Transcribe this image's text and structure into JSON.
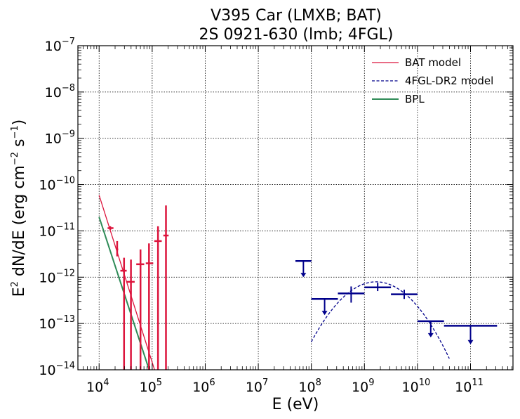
{
  "chart_data": {
    "type": "scatter",
    "title": [
      "V395 Car (LMXB; BAT)",
      "2S 0921-630 (lmb; 4FGL)"
    ],
    "xlabel": "E (eV)",
    "ylabel": "E2 dN/dE (erg cm-2 s-1)",
    "xscale": "log",
    "yscale": "log",
    "xlim": [
      3981,
      6309573445
    ],
    "ylim": [
      1e-14,
      1e-07
    ],
    "xlim_exp": [
      3.6,
      11.8
    ],
    "ylim_exp": [
      -14,
      -7
    ],
    "grid": true,
    "legend_position": "top-right",
    "x_ticks": [
      {
        "base": "10",
        "exp": "4",
        "value": 4
      },
      {
        "base": "10",
        "exp": "5",
        "value": 5
      },
      {
        "base": "10",
        "exp": "6",
        "value": 6
      },
      {
        "base": "10",
        "exp": "7",
        "value": 7
      },
      {
        "base": "10",
        "exp": "8",
        "value": 8
      },
      {
        "base": "10",
        "exp": "9",
        "value": 9
      },
      {
        "base": "10",
        "exp": "10",
        "value": 10
      },
      {
        "base": "10",
        "exp": "11",
        "value": 11
      }
    ],
    "y_ticks": [
      {
        "base": "10",
        "exp": "−7",
        "value": -7
      },
      {
        "base": "10",
        "exp": "−8",
        "value": -8
      },
      {
        "base": "10",
        "exp": "−9",
        "value": -9
      },
      {
        "base": "10",
        "exp": "−10",
        "value": -10
      },
      {
        "base": "10",
        "exp": "−11",
        "value": -11
      },
      {
        "base": "10",
        "exp": "−12",
        "value": -12
      },
      {
        "base": "10",
        "exp": "−13",
        "value": -13
      },
      {
        "base": "10",
        "exp": "−14",
        "value": -14
      }
    ],
    "legend": [
      {
        "label": "BAT model",
        "color": "#dc143c",
        "style": "solid"
      },
      {
        "label": "4FGL-DR2 model",
        "color": "#00008b",
        "style": "dashed"
      },
      {
        "label": "BPL",
        "color": "#2e8b57",
        "style": "solid"
      }
    ],
    "bat_model": {
      "color": "#dc143c",
      "points": [
        [
          4.0,
          -10.23
        ],
        [
          5.1,
          -14.2
        ]
      ]
    },
    "bpl": {
      "color": "#2e8b57",
      "points": [
        [
          4.0,
          -10.7
        ],
        [
          5.0,
          -14.2
        ]
      ]
    },
    "fgl_model": {
      "color": "#00008b",
      "peak_logx": 9.22,
      "peak_logy": -12.1,
      "curvature": 0.87
    },
    "bat_points": {
      "color": "#dc143c",
      "points": [
        {
          "logx": 4.21,
          "x_lo": 4.16,
          "x_hi": 4.27,
          "logy": -10.94,
          "y_lo": -10.98,
          "y_hi": -10.9
        },
        {
          "logx": 4.34,
          "x_lo": 4.32,
          "x_hi": 4.36,
          "logy": -11.4,
          "y_lo": -11.55,
          "y_hi": -11.22
        },
        {
          "logx": 4.47,
          "x_lo": 4.4,
          "x_hi": 4.52,
          "logy": -11.86,
          "y_lo": -14.2,
          "y_hi": -11.58
        },
        {
          "logx": 4.6,
          "x_lo": 4.52,
          "x_hi": 4.67,
          "logy": -12.1,
          "y_lo": -14.2,
          "y_hi": -11.62
        },
        {
          "logx": 4.78,
          "x_lo": 4.7,
          "x_hi": 4.85,
          "logy": -11.72,
          "y_lo": -14.2,
          "y_hi": -11.4
        },
        {
          "logx": 4.94,
          "x_lo": 4.88,
          "x_hi": 5.02,
          "logy": -11.7,
          "y_lo": -14.2,
          "y_hi": -11.27
        },
        {
          "logx": 5.11,
          "x_lo": 5.04,
          "x_hi": 5.18,
          "logy": -11.22,
          "y_lo": -14.2,
          "y_hi": -10.9
        },
        {
          "logx": 5.26,
          "x_lo": 5.21,
          "x_hi": 5.31,
          "logy": -11.1,
          "y_lo": -14.2,
          "y_hi": -10.45
        }
      ]
    },
    "fgl_upper_limits": {
      "color": "#00008b",
      "points": [
        {
          "logx": 7.85,
          "x_lo": 7.7,
          "x_hi": 8.0,
          "logy": -11.65,
          "arrow_to": -12.0
        },
        {
          "logx": 8.25,
          "x_lo": 8.0,
          "x_hi": 8.5,
          "logy": -12.47,
          "arrow_to": -12.82
        },
        {
          "logx": 10.25,
          "x_lo": 10.0,
          "x_hi": 10.5,
          "logy": -12.95,
          "arrow_to": -13.3
        },
        {
          "logx": 11.0,
          "x_lo": 10.5,
          "x_hi": 11.5,
          "logy": -13.05,
          "arrow_to": -13.45
        }
      ]
    },
    "fgl_points": {
      "color": "#00008b",
      "points": [
        {
          "logx": 8.75,
          "x_lo": 8.5,
          "x_hi": 9.0,
          "logy": -12.35,
          "y_lo": -12.55,
          "y_hi": -12.2
        },
        {
          "logx": 9.25,
          "x_lo": 9.0,
          "x_hi": 9.5,
          "logy": -12.22,
          "y_lo": -12.3,
          "y_hi": -12.12
        },
        {
          "logx": 9.75,
          "x_lo": 9.5,
          "x_hi": 10.0,
          "logy": -12.37,
          "y_lo": -12.47,
          "y_hi": -12.27
        }
      ]
    }
  }
}
